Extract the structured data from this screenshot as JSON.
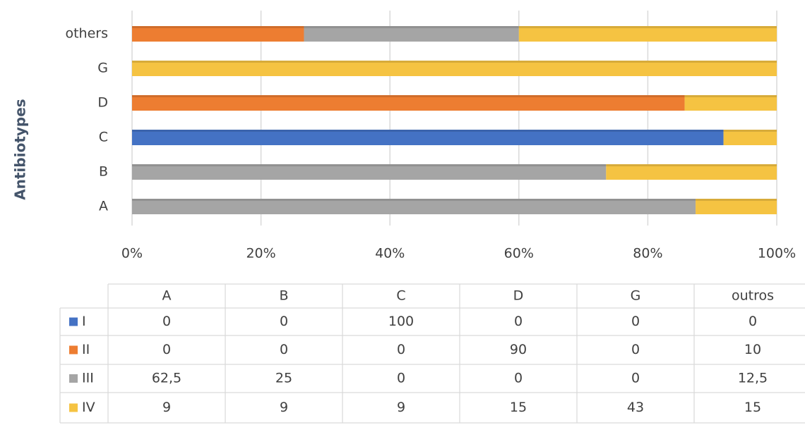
{
  "chart_data": {
    "type": "bar",
    "orientation": "horizontal",
    "stacking": "percent",
    "y_label": "Antibiotypes",
    "categories": [
      "A",
      "B",
      "C",
      "D",
      "G",
      "others"
    ],
    "table_columns": [
      "A",
      "B",
      "C",
      "D",
      "G",
      "outros"
    ],
    "series": [
      {
        "name": "I",
        "color": "#4472c4",
        "values": [
          0,
          0,
          100,
          0,
          0,
          0
        ]
      },
      {
        "name": "II",
        "color": "#ed7d31",
        "values": [
          0,
          0,
          0,
          90,
          0,
          10
        ]
      },
      {
        "name": "III",
        "color": "#a5a5a5",
        "values": [
          62.5,
          25,
          0,
          0,
          0,
          12.5
        ],
        "value_labels": [
          "62,5",
          "25",
          "0",
          "0",
          "0",
          "12,5"
        ]
      },
      {
        "name": "IV",
        "color": "#f5c342",
        "values": [
          9,
          9,
          9,
          15,
          43,
          15
        ]
      }
    ],
    "xlim": [
      0,
      100
    ],
    "xticks": [
      {
        "value": 0,
        "label": "0%"
      },
      {
        "value": 20,
        "label": "20%"
      },
      {
        "value": 40,
        "label": "40%"
      },
      {
        "value": 60,
        "label": "60%"
      },
      {
        "value": 80,
        "label": "80%"
      },
      {
        "value": 100,
        "label": "100%"
      }
    ],
    "grid": true
  }
}
